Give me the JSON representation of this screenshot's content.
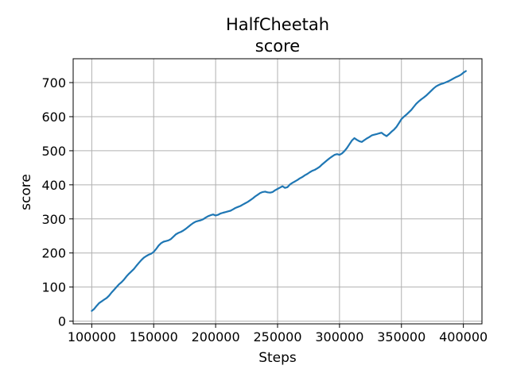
{
  "chart_data": {
    "type": "line",
    "title": "HalfCheetah",
    "subtitle": "score",
    "xlabel": "Steps",
    "ylabel": "score",
    "xlim": [
      85000,
      415000
    ],
    "ylim": [
      -8,
      770
    ],
    "x_ticks": [
      100000,
      150000,
      200000,
      250000,
      300000,
      350000,
      400000
    ],
    "y_ticks": [
      0,
      100,
      200,
      300,
      400,
      500,
      600,
      700
    ],
    "grid": true,
    "colors": {
      "series": "#1f77b4",
      "grid": "#b0b0b0",
      "axes": "#000000"
    },
    "series": [
      {
        "x": [
          100000,
          102000,
          104000,
          106000,
          108000,
          110000,
          112000,
          114000,
          116000,
          118000,
          120000,
          122000,
          124000,
          126000,
          128000,
          130000,
          132000,
          134000,
          136000,
          138000,
          140000,
          142000,
          144000,
          146000,
          148000,
          150000,
          152000,
          154000,
          156000,
          158000,
          160000,
          162000,
          164000,
          166000,
          168000,
          170000,
          172000,
          174000,
          176000,
          178000,
          180000,
          182000,
          184000,
          186000,
          188000,
          190000,
          192000,
          194000,
          196000,
          198000,
          200000,
          202000,
          204000,
          206000,
          208000,
          210000,
          212000,
          214000,
          216000,
          218000,
          220000,
          222000,
          224000,
          226000,
          228000,
          230000,
          232000,
          234000,
          236000,
          238000,
          240000,
          242000,
          244000,
          246000,
          248000,
          250000,
          252000,
          254000,
          256000,
          258000,
          260000,
          262000,
          264000,
          266000,
          268000,
          270000,
          272000,
          274000,
          276000,
          278000,
          280000,
          282000,
          284000,
          286000,
          288000,
          290000,
          292000,
          294000,
          296000,
          298000,
          300000,
          302000,
          304000,
          306000,
          308000,
          310000,
          312000,
          314000,
          316000,
          318000,
          320000,
          322000,
          324000,
          326000,
          328000,
          330000,
          332000,
          334000,
          336000,
          338000,
          340000,
          342000,
          344000,
          346000,
          348000,
          350000,
          352000,
          354000,
          356000,
          358000,
          360000,
          362000,
          364000,
          366000,
          368000,
          370000,
          372000,
          374000,
          376000,
          378000,
          380000,
          382000,
          384000,
          386000,
          388000,
          390000,
          392000,
          394000,
          396000,
          398000,
          400000,
          402000
        ],
        "values": [
          30,
          36,
          45,
          53,
          58,
          63,
          68,
          75,
          84,
          92,
          100,
          108,
          114,
          122,
          131,
          139,
          146,
          153,
          162,
          171,
          179,
          186,
          191,
          195,
          198,
          203,
          212,
          222,
          229,
          233,
          235,
          237,
          241,
          248,
          255,
          259,
          262,
          266,
          271,
          277,
          283,
          288,
          292,
          294,
          296,
          299,
          304,
          308,
          311,
          313,
          310,
          312,
          316,
          318,
          320,
          322,
          324,
          328,
          332,
          335,
          338,
          342,
          346,
          350,
          355,
          360,
          366,
          371,
          376,
          379,
          380,
          378,
          377,
          379,
          384,
          388,
          392,
          396,
          391,
          393,
          401,
          406,
          410,
          414,
          419,
          423,
          428,
          432,
          437,
          441,
          444,
          448,
          453,
          460,
          466,
          472,
          478,
          483,
          488,
          490,
          488,
          492,
          499,
          508,
          519,
          530,
          537,
          532,
          528,
          526,
          531,
          536,
          540,
          545,
          547,
          549,
          551,
          553,
          547,
          543,
          549,
          556,
          562,
          570,
          581,
          593,
          600,
          606,
          613,
          620,
          629,
          638,
          645,
          651,
          656,
          662,
          669,
          676,
          683,
          689,
          693,
          696,
          698,
          701,
          704,
          708,
          712,
          716,
          719,
          723,
          729,
          734
        ]
      }
    ]
  }
}
